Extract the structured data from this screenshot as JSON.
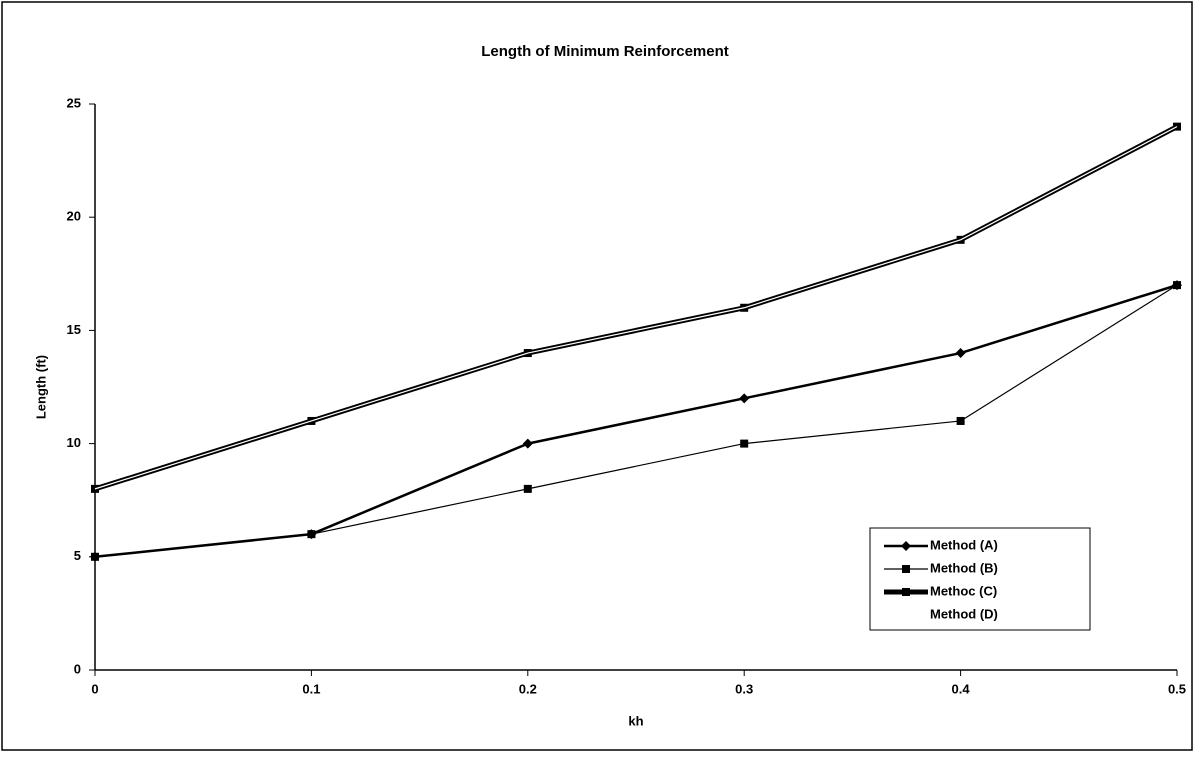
{
  "chart_data": {
    "type": "line",
    "title": "Length of Minimum Reinforcement",
    "x_label": "kh",
    "y_label": "Length (ft)",
    "x": [
      0,
      0.1,
      0.2,
      0.3,
      0.4,
      0.5
    ],
    "series": [
      {
        "name": "Method (A)",
        "color": "#000000",
        "marker": "diamond",
        "linewidth": 2.5,
        "values": [
          5,
          6,
          10,
          12,
          14,
          17
        ]
      },
      {
        "name": "Method (B)",
        "color": "#000000",
        "marker": "square",
        "linewidth": 1.2,
        "values": [
          5,
          6,
          8,
          10,
          11,
          17
        ]
      },
      {
        "name": "Methoc (C)",
        "color": "#000000",
        "marker": "square",
        "linewidth": 5,
        "values": [
          8,
          11,
          14,
          16,
          19,
          24
        ]
      },
      {
        "name": "Method (D)",
        "color": "#ffffff",
        "marker": "none",
        "linewidth": 1.2,
        "values": [
          8,
          11,
          14,
          16,
          19,
          24
        ]
      }
    ],
    "xlim": [
      0,
      0.5
    ],
    "xticks": [
      0,
      0.1,
      0.2,
      0.3,
      0.4,
      0.5
    ],
    "ylim": [
      0,
      25
    ],
    "yticks": [
      0,
      5,
      10,
      15,
      20,
      25
    ],
    "grid": false
  }
}
